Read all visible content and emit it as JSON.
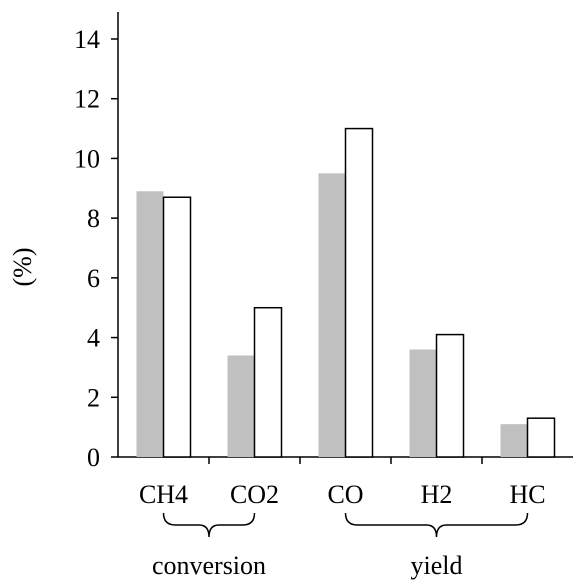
{
  "chart_data": {
    "type": "bar",
    "ylabel": "(%)",
    "ylim": [
      0,
      15
    ],
    "yticks": [
      0,
      2,
      4,
      6,
      8,
      10,
      12,
      14
    ],
    "categories": [
      "CH4",
      "CO2",
      "CO",
      "H2",
      "HC"
    ],
    "series": [
      {
        "color": "#c0c0c0",
        "outline": false,
        "values": [
          8.9,
          3.4,
          9.5,
          3.6,
          1.1
        ]
      },
      {
        "color": "#ffffff",
        "outline": true,
        "values": [
          8.7,
          5.0,
          11.0,
          4.1,
          1.3
        ]
      }
    ],
    "groups": [
      {
        "label": "conversion",
        "categories": [
          "CH4",
          "CO2"
        ]
      },
      {
        "label": "yield",
        "categories": [
          "CO",
          "H2",
          "HC"
        ]
      }
    ],
    "grid": false
  }
}
